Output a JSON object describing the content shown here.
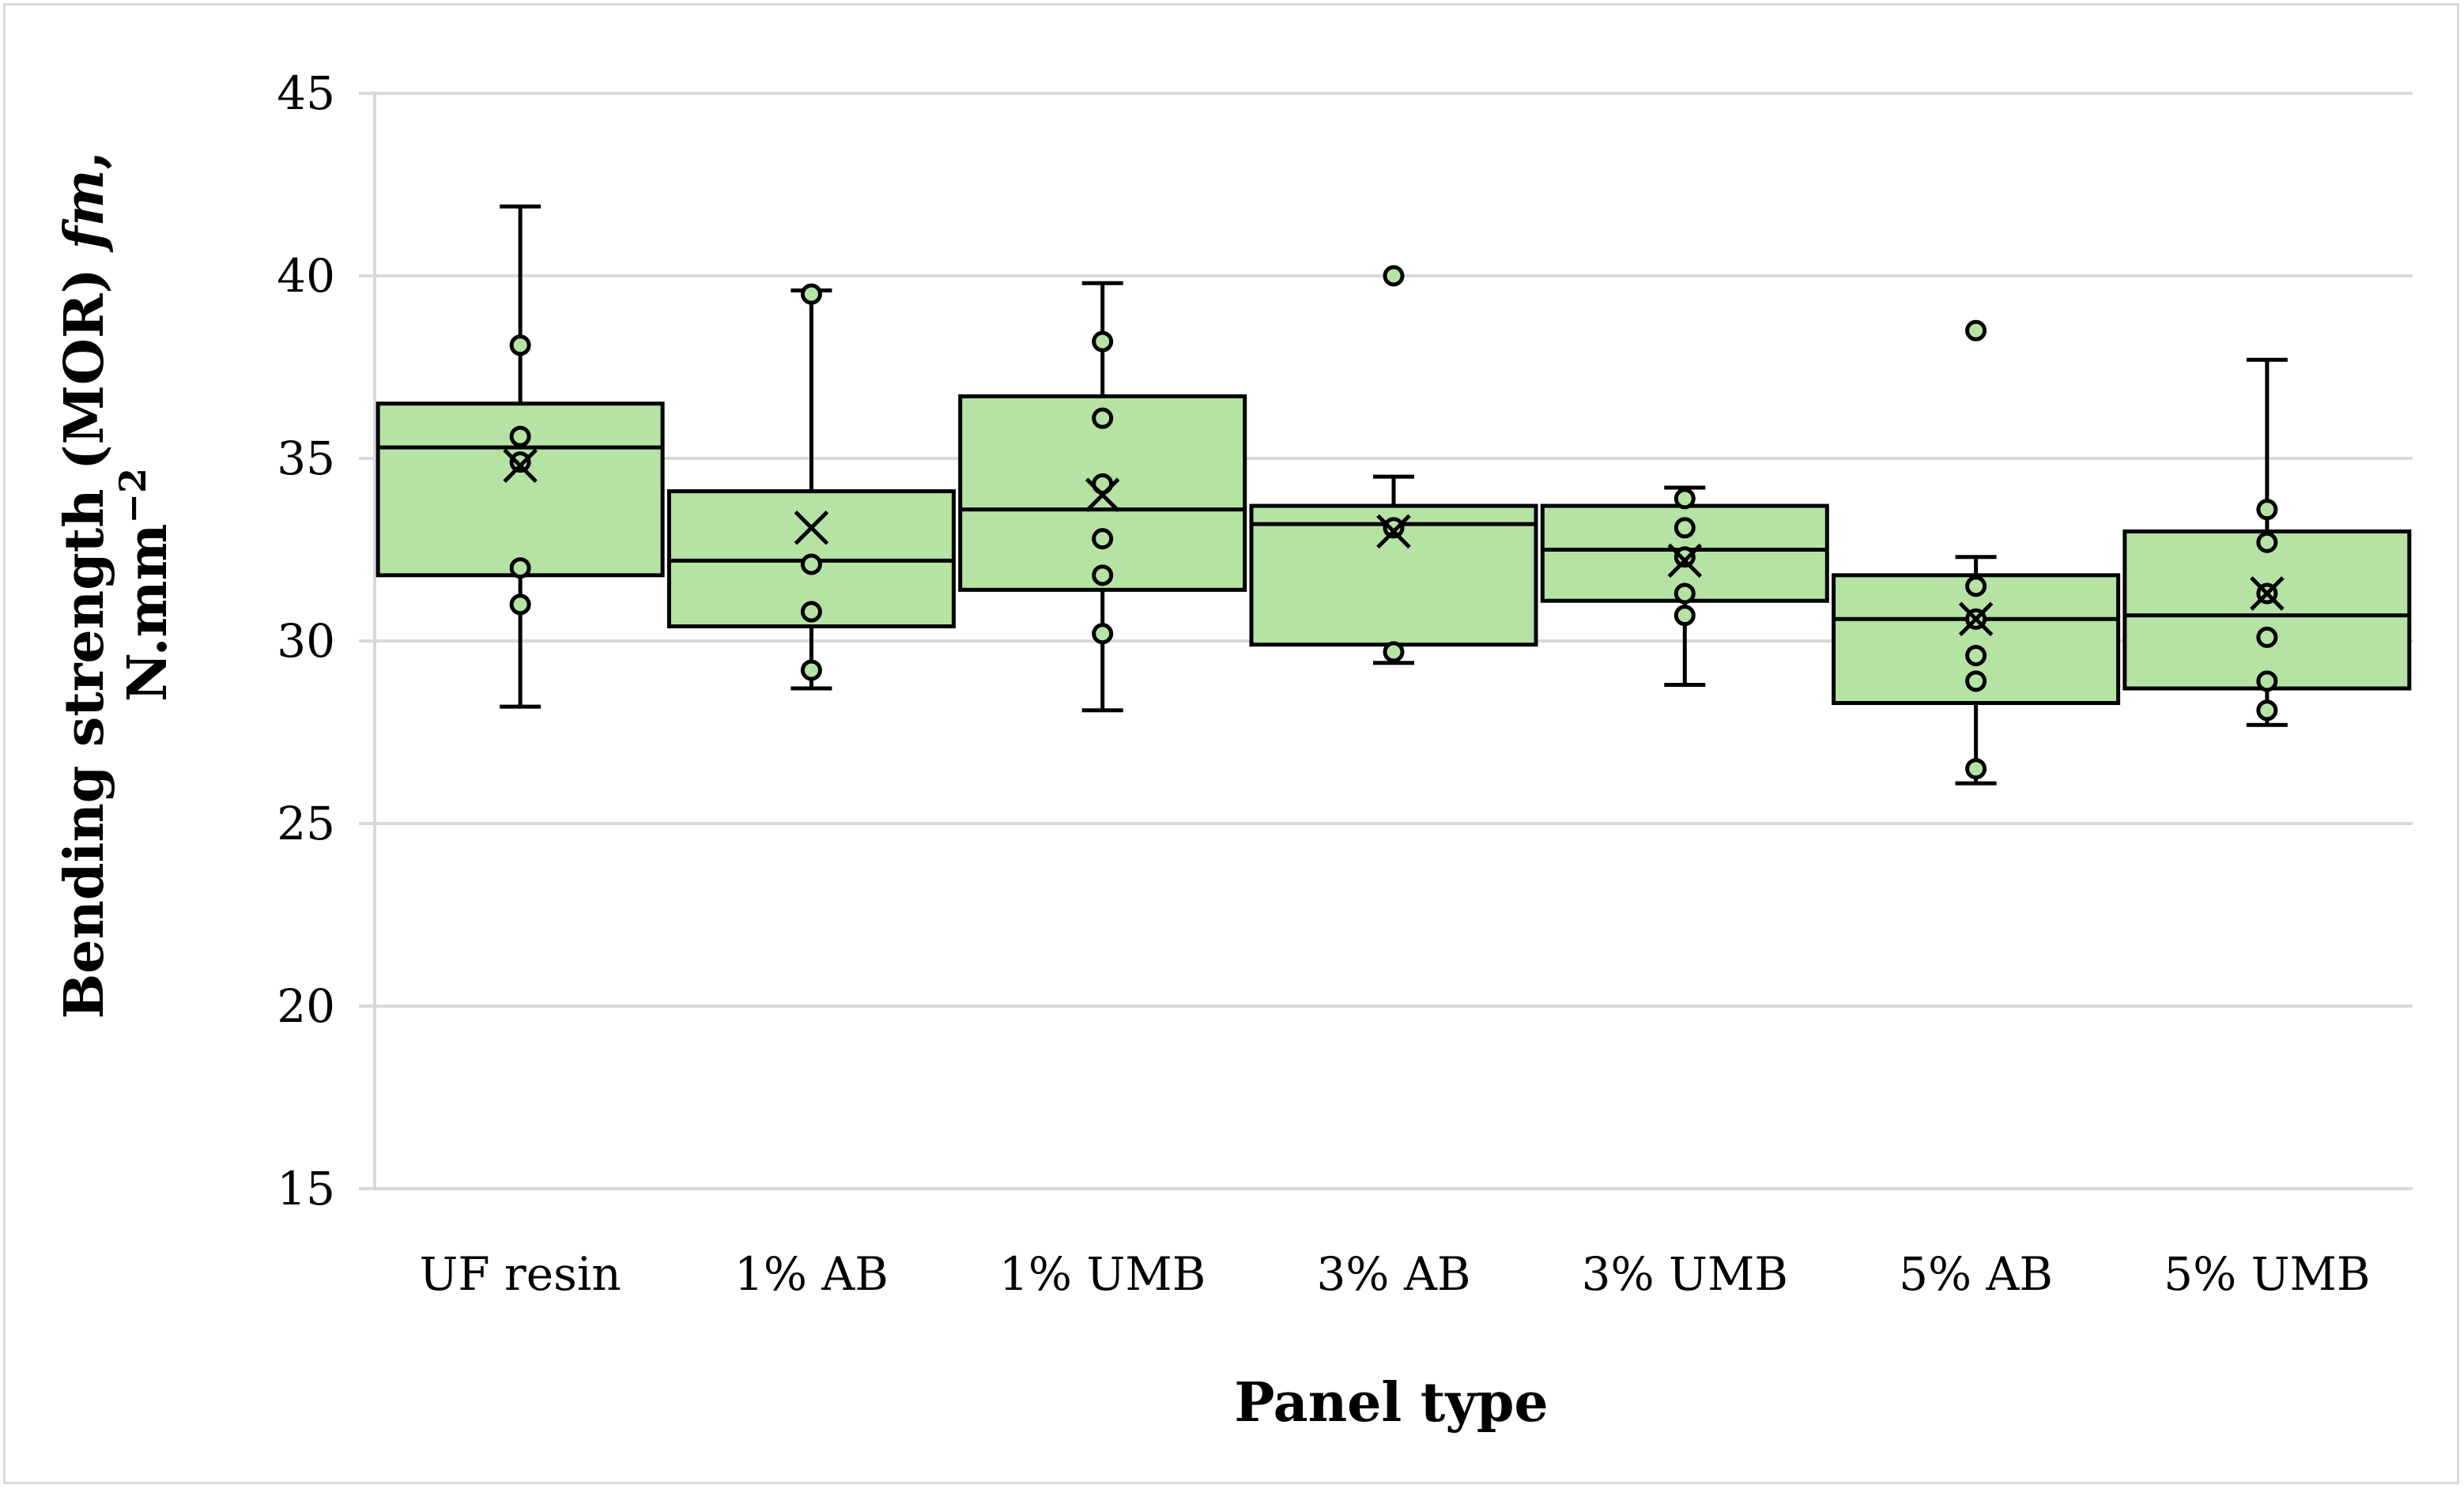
{
  "chart_data": {
    "type": "box",
    "title": "",
    "xlabel": "Panel type",
    "ylabel": {
      "line1_main": "Bending strength (MOR) ",
      "line1_italic": "fm",
      "line1_end": ",",
      "line2_main": "N.mm",
      "line2_sup": "−2"
    },
    "ylim": [
      15,
      45
    ],
    "yticks": [
      15,
      20,
      25,
      30,
      35,
      40,
      45
    ],
    "grid": true,
    "colors": {
      "box_fill": "#b5e3a3",
      "point_fill": "#b5e3a3",
      "stroke": "#000000",
      "grid": "#d9d9d9"
    },
    "categories": [
      "UF resin",
      "1% AB",
      "1% UMB",
      "3% AB",
      "3% UMB",
      "5% AB",
      "5% UMB"
    ],
    "boxes": [
      {
        "q1": 31.8,
        "median": 35.3,
        "q3": 36.5,
        "whisker_low": 28.2,
        "whisker_high": 41.9,
        "mean": 34.8,
        "points": [
          38.1,
          35.6,
          34.9,
          32.0,
          31.0
        ],
        "outliers": []
      },
      {
        "q1": 30.4,
        "median": 32.2,
        "q3": 34.1,
        "whisker_low": 28.7,
        "whisker_high": 39.6,
        "mean": 33.1,
        "points": [
          39.5,
          32.1,
          30.8,
          29.2
        ],
        "outliers": []
      },
      {
        "q1": 31.4,
        "median": 33.6,
        "q3": 36.7,
        "whisker_low": 28.1,
        "whisker_high": 39.8,
        "mean": 34.0,
        "points": [
          38.2,
          36.1,
          34.3,
          32.8,
          31.8,
          30.2
        ],
        "outliers": []
      },
      {
        "q1": 29.9,
        "median": 33.2,
        "q3": 33.7,
        "whisker_low": 29.4,
        "whisker_high": 34.5,
        "mean": 33.0,
        "points": [
          33.1,
          29.7
        ],
        "outliers": [
          40.0
        ]
      },
      {
        "q1": 31.1,
        "median": 32.5,
        "q3": 33.7,
        "whisker_low": 28.8,
        "whisker_high": 34.2,
        "mean": 32.2,
        "points": [
          33.9,
          33.1,
          32.3,
          31.3,
          30.7
        ],
        "outliers": []
      },
      {
        "q1": 28.3,
        "median": 30.6,
        "q3": 31.8,
        "whisker_low": 26.1,
        "whisker_high": 32.3,
        "mean": 30.6,
        "points": [
          31.5,
          30.6,
          29.6,
          28.9,
          26.5
        ],
        "outliers": [
          38.5
        ]
      },
      {
        "q1": 28.7,
        "median": 30.7,
        "q3": 33.0,
        "whisker_low": 27.7,
        "whisker_high": 37.7,
        "mean": 31.3,
        "points": [
          33.6,
          32.7,
          31.3,
          30.1,
          28.9,
          28.1
        ],
        "outliers": []
      }
    ]
  }
}
